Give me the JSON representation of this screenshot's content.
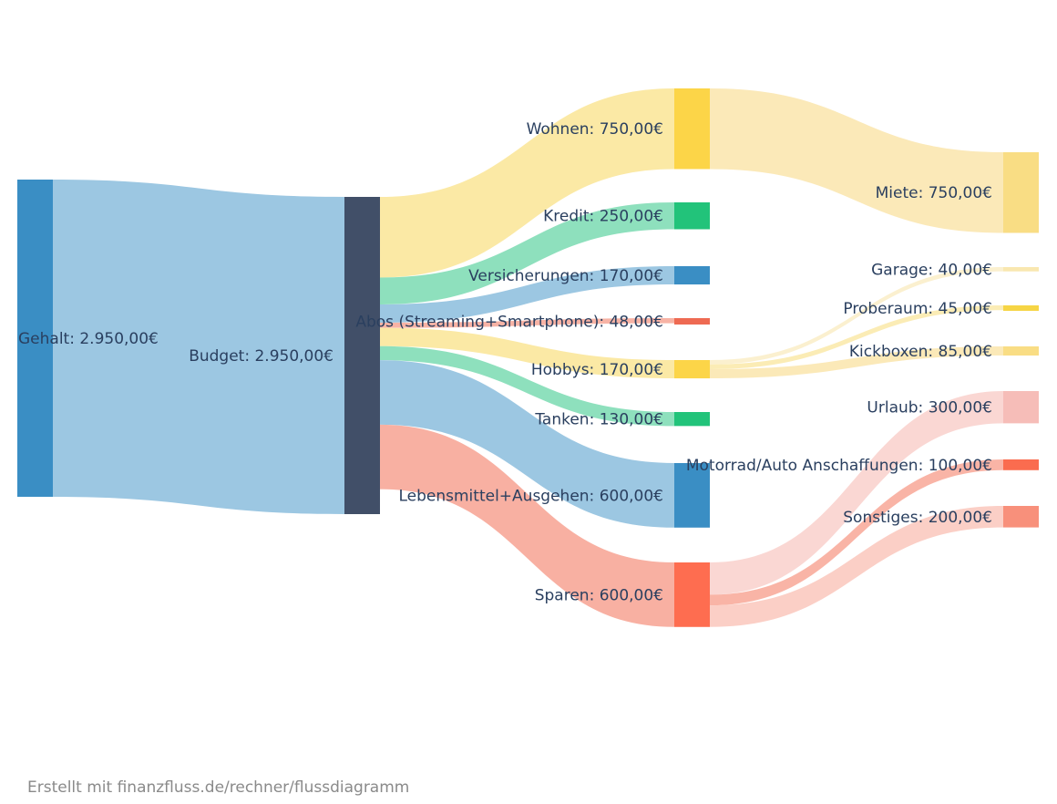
{
  "chart_data": {
    "type": "sankey",
    "currency": "€",
    "nodes": [
      {
        "id": "gehalt",
        "label": "Gehalt: 2.950,00€",
        "name": "Gehalt",
        "value": 2950,
        "color": "#3a8ec4",
        "column": 0
      },
      {
        "id": "budget",
        "label": "Budget: 2.950,00€",
        "name": "Budget",
        "value": 2950,
        "color": "#414f68",
        "column": 1
      },
      {
        "id": "wohnen",
        "label": "Wohnen: 750,00€",
        "name": "Wohnen",
        "value": 750,
        "color": "#fcd548",
        "column": 2
      },
      {
        "id": "kredit",
        "label": "Kredit: 250,00€",
        "name": "Kredit",
        "value": 250,
        "color": "#22c37a",
        "column": 2
      },
      {
        "id": "versicherungen",
        "label": "Versicherungen: 170,00€",
        "name": "Versicherungen",
        "value": 170,
        "color": "#3a8ec4",
        "column": 2
      },
      {
        "id": "abos",
        "label": "Abos (Streaming+Smartphone): 48,00€",
        "name": "Abos (Streaming+Smartphone)",
        "value": 48,
        "color": "#ee6a52",
        "column": 2
      },
      {
        "id": "hobbys",
        "label": "Hobbys: 170,00€",
        "name": "Hobbys",
        "value": 170,
        "color": "#fcd548",
        "column": 2
      },
      {
        "id": "tanken",
        "label": "Tanken: 130,00€",
        "name": "Tanken",
        "value": 130,
        "color": "#22c37a",
        "column": 2
      },
      {
        "id": "lebensmittel",
        "label": "Lebensmittel+Ausgehen: 600,00€",
        "name": "Lebensmittel+Ausgehen",
        "value": 600,
        "color": "#3a8ec4",
        "column": 2
      },
      {
        "id": "sparen",
        "label": "Sparen: 600,00€",
        "name": "Sparen",
        "value": 600,
        "color": "#fe6d50",
        "column": 2
      },
      {
        "id": "miete",
        "label": "Miete: 750,00€",
        "name": "Miete",
        "value": 750,
        "color": "#f9dd84",
        "column": 3
      },
      {
        "id": "garage",
        "label": "Garage: 40,00€",
        "name": "Garage",
        "value": 40,
        "color": "#f9e7b0",
        "column": 3
      },
      {
        "id": "proberaum",
        "label": "Proberaum: 45,00€",
        "name": "Proberaum",
        "value": 45,
        "color": "#f6d545",
        "column": 3
      },
      {
        "id": "kickboxen",
        "label": "Kickboxen: 85,00€",
        "name": "Kickboxen",
        "value": 85,
        "color": "#f9dd84",
        "column": 3
      },
      {
        "id": "urlaub",
        "label": "Urlaub: 300,00€",
        "name": "Urlaub",
        "value": 300,
        "color": "#f6bdb8",
        "column": 3
      },
      {
        "id": "motorrad",
        "label": "Motorrad/Auto Anschaffungen: 100,00€",
        "name": "Motorrad/Auto Anschaffungen",
        "value": 100,
        "color": "#fa6c4f",
        "column": 3
      },
      {
        "id": "sonstiges",
        "label": "Sonstiges: 200,00€",
        "name": "Sonstiges",
        "value": 200,
        "color": "#f8907b",
        "column": 3
      }
    ],
    "links": [
      {
        "source": "gehalt",
        "target": "budget",
        "value": 2950,
        "color": "#9cc7e2"
      },
      {
        "source": "budget",
        "target": "wohnen",
        "value": 750,
        "color": "#fbe9a5"
      },
      {
        "source": "budget",
        "target": "kredit",
        "value": 250,
        "color": "#8ee0bd"
      },
      {
        "source": "budget",
        "target": "versicherungen",
        "value": 170,
        "color": "#9cc7e2"
      },
      {
        "source": "budget",
        "target": "abos",
        "value": 48,
        "color": "#f7b3a5"
      },
      {
        "source": "budget",
        "target": "hobbys",
        "value": 170,
        "color": "#fbe9a5"
      },
      {
        "source": "budget",
        "target": "tanken",
        "value": 130,
        "color": "#8ee0bd"
      },
      {
        "source": "budget",
        "target": "lebensmittel",
        "value": 600,
        "color": "#9cc7e2"
      },
      {
        "source": "budget",
        "target": "sparen",
        "value": 600,
        "color": "#f8b0a2"
      },
      {
        "source": "wohnen",
        "target": "miete",
        "value": 750,
        "color": "#fbe9b8"
      },
      {
        "source": "hobbys",
        "target": "garage",
        "value": 40,
        "color": "#fbf0cf"
      },
      {
        "source": "hobbys",
        "target": "proberaum",
        "value": 45,
        "color": "#fbecb5"
      },
      {
        "source": "hobbys",
        "target": "kickboxen",
        "value": 85,
        "color": "#fbe9b8"
      },
      {
        "source": "sparen",
        "target": "urlaub",
        "value": 300,
        "color": "#fad7d3"
      },
      {
        "source": "sparen",
        "target": "motorrad",
        "value": 100,
        "color": "#f9b4a6"
      },
      {
        "source": "sparen",
        "target": "sonstiges",
        "value": 200,
        "color": "#fbcfc6"
      }
    ]
  },
  "footer": {
    "credit": "Erstellt mit finanzfluss.de/rechner/flussdiagramm"
  }
}
